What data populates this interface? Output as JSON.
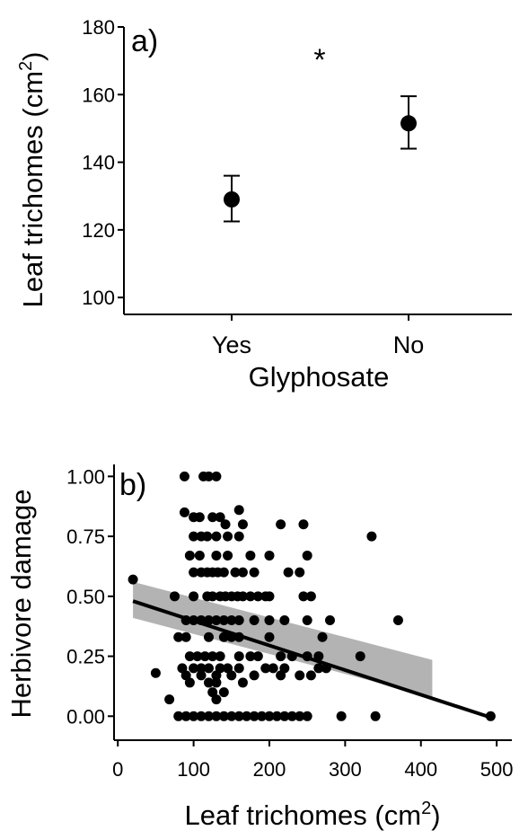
{
  "chart_data": [
    {
      "type": "scatter",
      "panel_label": "a)",
      "xlabel": "Glyphosate",
      "ylabel": "Leaf trichomes (cm",
      "ylabel_sup": "2",
      "ylabel_close": ")",
      "categories": [
        "Yes",
        "No"
      ],
      "values": [
        129,
        151.5
      ],
      "error_low": [
        122.5,
        144
      ],
      "error_high": [
        136,
        159.5
      ],
      "ylim": [
        95,
        180
      ],
      "yticks": [
        "100",
        "120",
        "140",
        "160",
        "180"
      ],
      "annotation": "*",
      "grid": false
    },
    {
      "type": "scatter",
      "panel_label": "b)",
      "xlabel": "Leaf trichomes (cm",
      "xlabel_sup": "2",
      "xlabel_close": ")",
      "ylabel": "Herbivore damage",
      "xlim": [
        -5,
        520
      ],
      "ylim": [
        -0.1,
        1.05
      ],
      "xticks": [
        "0",
        "100",
        "200",
        "300",
        "400",
        "500"
      ],
      "yticks": [
        "0.00",
        "0.25",
        "0.50",
        "0.75",
        "1.00"
      ],
      "grid": false,
      "points": [
        [
          20,
          0.57
        ],
        [
          50,
          0.18
        ],
        [
          68,
          0.07
        ],
        [
          88,
          1.0
        ],
        [
          113,
          1.0
        ],
        [
          120,
          1.0
        ],
        [
          130,
          1.0
        ],
        [
          88,
          0.85
        ],
        [
          100,
          0.83
        ],
        [
          108,
          0.83
        ],
        [
          125,
          0.83
        ],
        [
          135,
          0.83
        ],
        [
          142,
          0.8
        ],
        [
          160,
          0.86
        ],
        [
          215,
          0.8
        ],
        [
          245,
          0.8
        ],
        [
          165,
          0.8
        ],
        [
          100,
          0.75
        ],
        [
          110,
          0.75
        ],
        [
          118,
          0.75
        ],
        [
          130,
          0.75
        ],
        [
          145,
          0.75
        ],
        [
          160,
          0.75
        ],
        [
          335,
          0.75
        ],
        [
          95,
          0.67
        ],
        [
          108,
          0.67
        ],
        [
          130,
          0.67
        ],
        [
          145,
          0.67
        ],
        [
          175,
          0.67
        ],
        [
          200,
          0.67
        ],
        [
          250,
          0.67
        ],
        [
          100,
          0.6
        ],
        [
          110,
          0.6
        ],
        [
          118,
          0.6
        ],
        [
          125,
          0.6
        ],
        [
          132,
          0.6
        ],
        [
          140,
          0.6
        ],
        [
          155,
          0.6
        ],
        [
          165,
          0.6
        ],
        [
          180,
          0.6
        ],
        [
          225,
          0.6
        ],
        [
          240,
          0.6
        ],
        [
          75,
          0.5
        ],
        [
          100,
          0.5
        ],
        [
          118,
          0.5
        ],
        [
          125,
          0.5
        ],
        [
          135,
          0.5
        ],
        [
          142,
          0.5
        ],
        [
          150,
          0.5
        ],
        [
          158,
          0.5
        ],
        [
          165,
          0.5
        ],
        [
          175,
          0.5
        ],
        [
          185,
          0.5
        ],
        [
          195,
          0.5
        ],
        [
          200,
          0.5
        ],
        [
          245,
          0.5
        ],
        [
          255,
          0.5
        ],
        [
          90,
          0.4
        ],
        [
          100,
          0.4
        ],
        [
          110,
          0.4
        ],
        [
          120,
          0.4
        ],
        [
          130,
          0.4
        ],
        [
          140,
          0.4
        ],
        [
          150,
          0.4
        ],
        [
          160,
          0.4
        ],
        [
          180,
          0.4
        ],
        [
          200,
          0.4
        ],
        [
          220,
          0.4
        ],
        [
          250,
          0.4
        ],
        [
          280,
          0.4
        ],
        [
          370,
          0.4
        ],
        [
          80,
          0.33
        ],
        [
          90,
          0.33
        ],
        [
          120,
          0.33
        ],
        [
          140,
          0.33
        ],
        [
          150,
          0.33
        ],
        [
          160,
          0.33
        ],
        [
          200,
          0.33
        ],
        [
          270,
          0.33
        ],
        [
          95,
          0.25
        ],
        [
          105,
          0.25
        ],
        [
          115,
          0.25
        ],
        [
          125,
          0.25
        ],
        [
          135,
          0.25
        ],
        [
          160,
          0.25
        ],
        [
          175,
          0.25
        ],
        [
          185,
          0.25
        ],
        [
          215,
          0.25
        ],
        [
          230,
          0.25
        ],
        [
          250,
          0.25
        ],
        [
          265,
          0.25
        ],
        [
          320,
          0.25
        ],
        [
          85,
          0.2
        ],
        [
          100,
          0.2
        ],
        [
          110,
          0.2
        ],
        [
          120,
          0.2
        ],
        [
          135,
          0.2
        ],
        [
          145,
          0.2
        ],
        [
          160,
          0.2
        ],
        [
          195,
          0.2
        ],
        [
          205,
          0.2
        ],
        [
          220,
          0.2
        ],
        [
          265,
          0.2
        ],
        [
          275,
          0.2
        ],
        [
          90,
          0.17
        ],
        [
          110,
          0.17
        ],
        [
          130,
          0.17
        ],
        [
          150,
          0.17
        ],
        [
          180,
          0.17
        ],
        [
          215,
          0.17
        ],
        [
          240,
          0.17
        ],
        [
          255,
          0.17
        ],
        [
          95,
          0.14
        ],
        [
          120,
          0.14
        ],
        [
          130,
          0.14
        ],
        [
          165,
          0.14
        ],
        [
          125,
          0.1
        ],
        [
          140,
          0.1
        ],
        [
          130,
          0.07
        ],
        [
          80,
          0.0
        ],
        [
          90,
          0.0
        ],
        [
          100,
          0.0
        ],
        [
          110,
          0.0
        ],
        [
          120,
          0.0
        ],
        [
          130,
          0.0
        ],
        [
          140,
          0.0
        ],
        [
          150,
          0.0
        ],
        [
          160,
          0.0
        ],
        [
          170,
          0.0
        ],
        [
          180,
          0.0
        ],
        [
          190,
          0.0
        ],
        [
          200,
          0.0
        ],
        [
          210,
          0.0
        ],
        [
          220,
          0.0
        ],
        [
          230,
          0.0
        ],
        [
          240,
          0.0
        ],
        [
          250,
          0.0
        ],
        [
          295,
          0.0
        ],
        [
          340,
          0.0
        ],
        [
          492,
          0.0
        ]
      ],
      "fit_line": {
        "x": [
          20,
          492
        ],
        "y": [
          0.48,
          -0.005
        ]
      },
      "confidence_band": {
        "x": [
          20,
          415
        ],
        "lower": [
          0.41,
          0.08
        ],
        "upper": [
          0.56,
          0.235
        ]
      },
      "band_color": "#b3b3b3",
      "point_color": "#000000"
    }
  ]
}
